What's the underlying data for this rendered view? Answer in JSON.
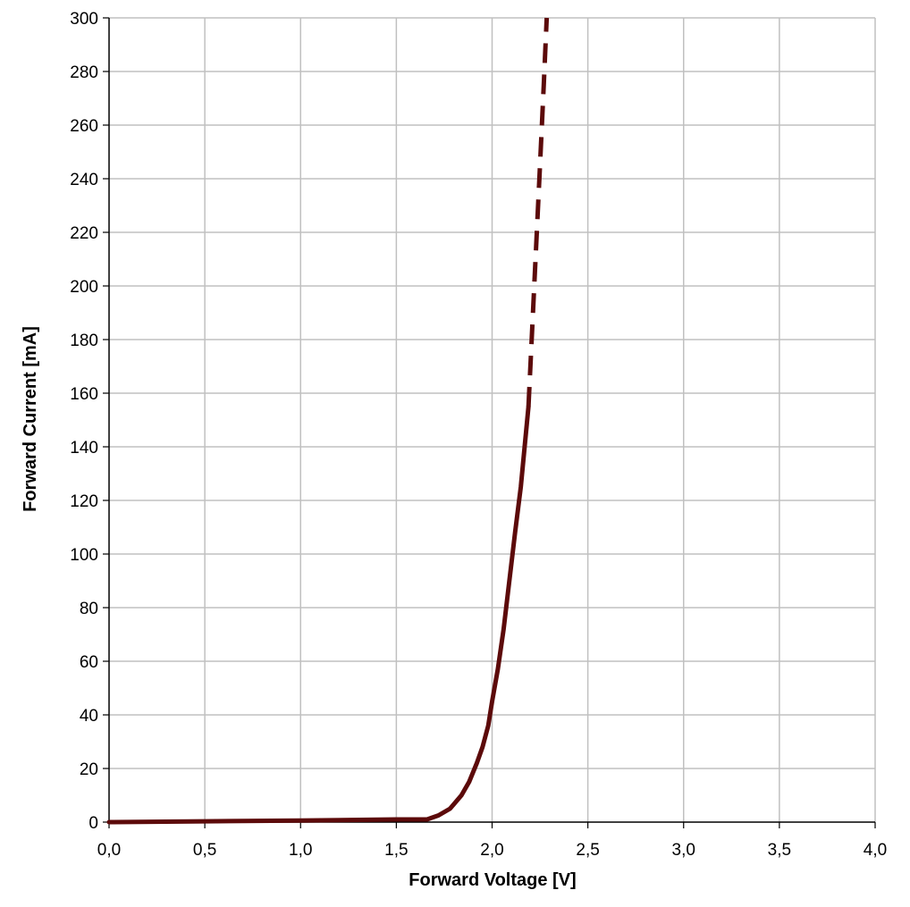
{
  "chart_data": {
    "type": "line",
    "title": "",
    "xlabel": "Forward Voltage [V]",
    "ylabel": "Forward Current [mA]",
    "xlim": [
      0,
      4
    ],
    "ylim": [
      0,
      300
    ],
    "grid": true,
    "x_ticks": [
      "0,0",
      "0,5",
      "1,0",
      "1,5",
      "2,0",
      "2,5",
      "3,0",
      "3,5",
      "4,0"
    ],
    "x_tick_values": [
      0,
      0.5,
      1.0,
      1.5,
      2.0,
      2.5,
      3.0,
      3.5,
      4.0
    ],
    "y_ticks": [
      "0",
      "20",
      "40",
      "60",
      "80",
      "100",
      "120",
      "140",
      "160",
      "180",
      "200",
      "220",
      "240",
      "260",
      "280",
      "300"
    ],
    "y_tick_values": [
      0,
      20,
      40,
      60,
      80,
      100,
      120,
      140,
      160,
      180,
      200,
      220,
      240,
      260,
      280,
      300
    ],
    "series": [
      {
        "style": "solid",
        "color": "#5c0a0a",
        "x": [
          0.0,
          0.5,
          1.0,
          1.5,
          1.66,
          1.72,
          1.78,
          1.84,
          1.88,
          1.92,
          1.95,
          1.98,
          2.0,
          2.03,
          2.06,
          2.09,
          2.12,
          2.15,
          2.17,
          2.19
        ],
        "y": [
          0,
          0.3,
          0.6,
          1,
          1,
          2.5,
          5,
          10,
          15,
          22,
          28,
          36,
          45,
          57,
          72,
          90,
          108,
          125,
          140,
          155
        ]
      },
      {
        "style": "dashed",
        "color": "#5c0a0a",
        "x": [
          2.19,
          2.21,
          2.23,
          2.25,
          2.27,
          2.285
        ],
        "y": [
          155,
          185,
          215,
          245,
          275,
          300
        ]
      }
    ]
  }
}
